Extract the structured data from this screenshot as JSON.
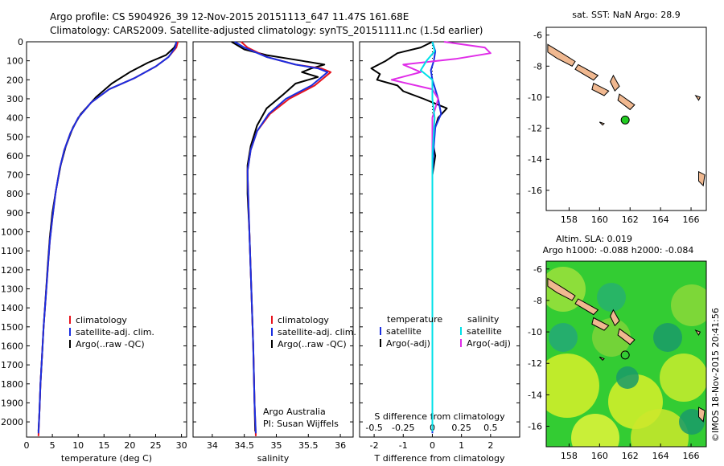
{
  "header": {
    "line1": "Argo profile: CS 5904926_39 12-Nov-2015 20151113_647 11.47S 161.68E",
    "line2": "Climatology: CARS2009. Satellite-adjusted climatology: synTS_20151111.nc (1.5d earlier)"
  },
  "side_label": "©IMOS 18-Nov-2015 20:41:56",
  "chart_data": [
    {
      "type": "line",
      "panel": "temperature",
      "xlabel": "temperature (deg C)",
      "xlim": [
        0,
        31
      ],
      "xticks": [
        "0",
        "5",
        "10",
        "15",
        "20",
        "25",
        "30"
      ],
      "ylim": [
        0,
        2080
      ],
      "yticks": [
        "0",
        "100",
        "200",
        "300",
        "400",
        "500",
        "600",
        "700",
        "800",
        "900",
        "1000",
        "1100",
        "1200",
        "1300",
        "1400",
        "1500",
        "1600",
        "1700",
        "1800",
        "1900",
        "2000"
      ],
      "y_reversed": true,
      "legend": [
        "climatology",
        "satellite-adj. clim.",
        "Argo(..raw -QC)"
      ],
      "colors": {
        "climatology": "#e8141e",
        "satellite": "#1a2ee0",
        "argo": "#000000"
      },
      "series": [
        {
          "name": "climatology",
          "points": [
            [
              29.3,
              0
            ],
            [
              29.0,
              30
            ],
            [
              27.5,
              80
            ],
            [
              25,
              130
            ],
            [
              21,
              190
            ],
            [
              16,
              250
            ],
            [
              12.5,
              320
            ],
            [
              10,
              400
            ],
            [
              8.5,
              480
            ],
            [
              7.3,
              570
            ],
            [
              6.4,
              670
            ],
            [
              5.6,
              800
            ],
            [
              5,
              930
            ],
            [
              4.5,
              1050
            ],
            [
              4.1,
              1200
            ],
            [
              3.7,
              1350
            ],
            [
              3.3,
              1500
            ],
            [
              3,
              1650
            ],
            [
              2.7,
              1800
            ],
            [
              2.5,
              1950
            ],
            [
              2.3,
              2075
            ]
          ]
        },
        {
          "name": "satellite-adj. clim.",
          "points": [
            [
              29.0,
              0
            ],
            [
              28.8,
              30
            ],
            [
              27.5,
              80
            ],
            [
              25,
              130
            ],
            [
              21,
              190
            ],
            [
              16,
              250
            ],
            [
              12.5,
              320
            ],
            [
              10,
              400
            ],
            [
              8.5,
              480
            ],
            [
              7.3,
              570
            ],
            [
              6.4,
              670
            ],
            [
              5.6,
              800
            ],
            [
              5,
              930
            ],
            [
              4.5,
              1050
            ],
            [
              4.1,
              1200
            ],
            [
              3.7,
              1350
            ],
            [
              3.3,
              1500
            ],
            [
              3,
              1650
            ],
            [
              2.7,
              1800
            ],
            [
              2.5,
              1950
            ],
            [
              2.3,
              2060
            ]
          ]
        },
        {
          "name": "Argo(..raw -QC)",
          "points": [
            [
              29.1,
              0
            ],
            [
              28.6,
              30
            ],
            [
              27,
              70
            ],
            [
              23.5,
              110
            ],
            [
              20,
              160
            ],
            [
              16.5,
              220
            ],
            [
              13.5,
              290
            ],
            [
              10.5,
              380
            ],
            [
              9,
              450
            ],
            [
              7.6,
              550
            ],
            [
              6.6,
              650
            ],
            [
              5.7,
              780
            ],
            [
              5,
              900
            ],
            [
              4.5,
              1030
            ],
            [
              4.1,
              1180
            ],
            [
              3.7,
              1340
            ],
            [
              3.3,
              1500
            ],
            [
              3,
              1650
            ],
            [
              2.7,
              1800
            ],
            [
              2.5,
              1950
            ],
            [
              2.3,
              2050
            ]
          ]
        }
      ]
    },
    {
      "type": "line",
      "panel": "salinity",
      "xlabel": "salinity",
      "xlim": [
        33.7,
        36.2
      ],
      "xticks": [
        "34",
        "34.5",
        "35",
        "35.5",
        "36"
      ],
      "ylim": [
        0,
        2080
      ],
      "y_reversed": true,
      "legend": [
        "climatology",
        "satellite-adj. clim.",
        "Argo(..raw -QC)"
      ],
      "series": [
        {
          "name": "climatology",
          "points": [
            [
              34.45,
              0
            ],
            [
              34.55,
              30
            ],
            [
              34.85,
              80
            ],
            [
              35.3,
              120
            ],
            [
              35.7,
              140
            ],
            [
              35.85,
              160
            ],
            [
              35.6,
              230
            ],
            [
              35.2,
              300
            ],
            [
              34.9,
              380
            ],
            [
              34.7,
              470
            ],
            [
              34.6,
              570
            ],
            [
              34.55,
              680
            ],
            [
              34.56,
              800
            ],
            [
              34.58,
              1000
            ],
            [
              34.61,
              1300
            ],
            [
              34.64,
              1600
            ],
            [
              34.66,
              1900
            ],
            [
              34.68,
              2075
            ]
          ]
        },
        {
          "name": "satellite-adj. clim.",
          "points": [
            [
              34.35,
              0
            ],
            [
              34.5,
              30
            ],
            [
              34.85,
              80
            ],
            [
              35.3,
              120
            ],
            [
              35.65,
              140
            ],
            [
              35.8,
              160
            ],
            [
              35.55,
              230
            ],
            [
              35.15,
              300
            ],
            [
              34.88,
              380
            ],
            [
              34.7,
              470
            ],
            [
              34.6,
              570
            ],
            [
              34.55,
              680
            ],
            [
              34.56,
              800
            ],
            [
              34.58,
              1000
            ],
            [
              34.61,
              1300
            ],
            [
              34.64,
              1600
            ],
            [
              34.66,
              1900
            ],
            [
              34.68,
              2060
            ]
          ]
        },
        {
          "name": "Argo(..raw -QC)",
          "points": [
            [
              34.3,
              0
            ],
            [
              34.5,
              40
            ],
            [
              34.85,
              70
            ],
            [
              35.4,
              100
            ],
            [
              35.75,
              120
            ],
            [
              35.55,
              140
            ],
            [
              35.4,
              160
            ],
            [
              35.65,
              185
            ],
            [
              35.3,
              220
            ],
            [
              35.1,
              280
            ],
            [
              34.85,
              350
            ],
            [
              34.7,
              440
            ],
            [
              34.6,
              550
            ],
            [
              34.55,
              650
            ],
            [
              34.55,
              800
            ],
            [
              34.58,
              1000
            ],
            [
              34.61,
              1300
            ],
            [
              34.64,
              1600
            ],
            [
              34.66,
              1900
            ],
            [
              34.67,
              2050
            ]
          ]
        }
      ]
    },
    {
      "type": "line",
      "panel": "difference",
      "xlabel": "T difference from climatology",
      "xlabel_top": "S difference from climatology",
      "xlim": [
        -2.5,
        3.0
      ],
      "xticks": [
        "-2",
        "-1",
        "0",
        "1",
        "2"
      ],
      "s_xticks": [
        "-0.5",
        "-0.25",
        "0",
        "0.25",
        "0.5"
      ],
      "ylim": [
        0,
        2080
      ],
      "y_reversed": true,
      "legend_temperature_title": "temperature",
      "legend_salinity_title": "salinity",
      "legend_temperature": [
        "satellite",
        "Argo(-adj)"
      ],
      "legend_salinity": [
        "satellite",
        "Argo(-adj)"
      ],
      "colors": {
        "t_sat": "#1a2ee0",
        "t_argo": "#000000",
        "s_sat": "#00e0e8",
        "s_argo": "#e02ce8"
      },
      "series": [
        {
          "name": "T satellite",
          "points": [
            [
              0,
              0
            ],
            [
              0.1,
              50
            ],
            [
              0.05,
              100
            ],
            [
              -0.05,
              150
            ],
            [
              0,
              200
            ],
            [
              0.1,
              250
            ],
            [
              0.2,
              300
            ],
            [
              0.3,
              380
            ],
            [
              0.1,
              450
            ],
            [
              0.05,
              550
            ],
            [
              0,
              700
            ],
            [
              0,
              900
            ],
            [
              0,
              1200
            ],
            [
              0,
              1500
            ],
            [
              0,
              1800
            ],
            [
              0,
              2060
            ]
          ]
        },
        {
          "name": "T Argo(-adj)",
          "points": [
            [
              0,
              0
            ],
            [
              -0.4,
              30
            ],
            [
              -1.2,
              60
            ],
            [
              -1.6,
              100
            ],
            [
              -2.1,
              140
            ],
            [
              -1.8,
              170
            ],
            [
              -1.9,
              200
            ],
            [
              -1.2,
              230
            ],
            [
              -1.0,
              260
            ],
            [
              -0.3,
              300
            ],
            [
              0.5,
              350
            ],
            [
              0.2,
              400
            ],
            [
              0.1,
              450
            ],
            [
              0,
              520
            ],
            [
              0.1,
              600
            ],
            [
              0,
              700
            ],
            [
              0,
              900
            ],
            [
              0,
              1200
            ],
            [
              0,
              1500
            ],
            [
              0,
              1800
            ],
            [
              0,
              2050
            ]
          ]
        },
        {
          "name": "S satellite",
          "points": [
            [
              0,
              0
            ],
            [
              0.02,
              50
            ],
            [
              -0.05,
              100
            ],
            [
              -0.1,
              150
            ],
            [
              0,
              200
            ],
            [
              0,
              300
            ],
            [
              0.02,
              400
            ],
            [
              0,
              600
            ],
            [
              0,
              900
            ],
            [
              0,
              1200
            ],
            [
              0,
              1500
            ],
            [
              0,
              1800
            ],
            [
              0,
              2050
            ]
          ]
        },
        {
          "name": "S Argo(-adj)",
          "points": [
            [
              0.1,
              0
            ],
            [
              0.45,
              30
            ],
            [
              0.5,
              60
            ],
            [
              0.2,
              90
            ],
            [
              -0.25,
              120
            ],
            [
              -0.1,
              160
            ],
            [
              -0.35,
              200
            ],
            [
              0,
              250
            ],
            [
              0.05,
              300
            ],
            [
              0,
              400
            ],
            [
              0,
              600
            ],
            [
              0,
              900
            ],
            [
              0,
              1200
            ],
            [
              0,
              1500
            ],
            [
              0,
              1800
            ],
            [
              0,
              2050
            ]
          ]
        }
      ]
    }
  ],
  "text_labels": {
    "argo_australia": "Argo Australia",
    "pi": "PI: Susan Wijffels"
  },
  "maps": [
    {
      "title": "sat. SST: NaN Argo: 28.9",
      "xticks": [
        "158",
        "160",
        "162",
        "164",
        "166"
      ],
      "yticks": [
        "-6",
        "-8",
        "-10",
        "-12",
        "-14",
        "-16"
      ],
      "background": "#ffffff",
      "land_color": "#f0b890",
      "marker_color": "#22cc22",
      "marker": {
        "lon": 161.68,
        "lat": -11.47
      }
    },
    {
      "title_line1": "Altim. SLA: 0.019",
      "title_line2": "Argo h1000: -0.088 h2000: -0.084",
      "xticks": [
        "158",
        "160",
        "162",
        "164",
        "166"
      ],
      "yticks": [
        "-6",
        "-8",
        "-10",
        "-12",
        "-14",
        "-16"
      ],
      "background": "#33cc33",
      "land_color": "#f0b890",
      "marker": {
        "lon": 161.68,
        "lat": -11.47
      }
    }
  ]
}
